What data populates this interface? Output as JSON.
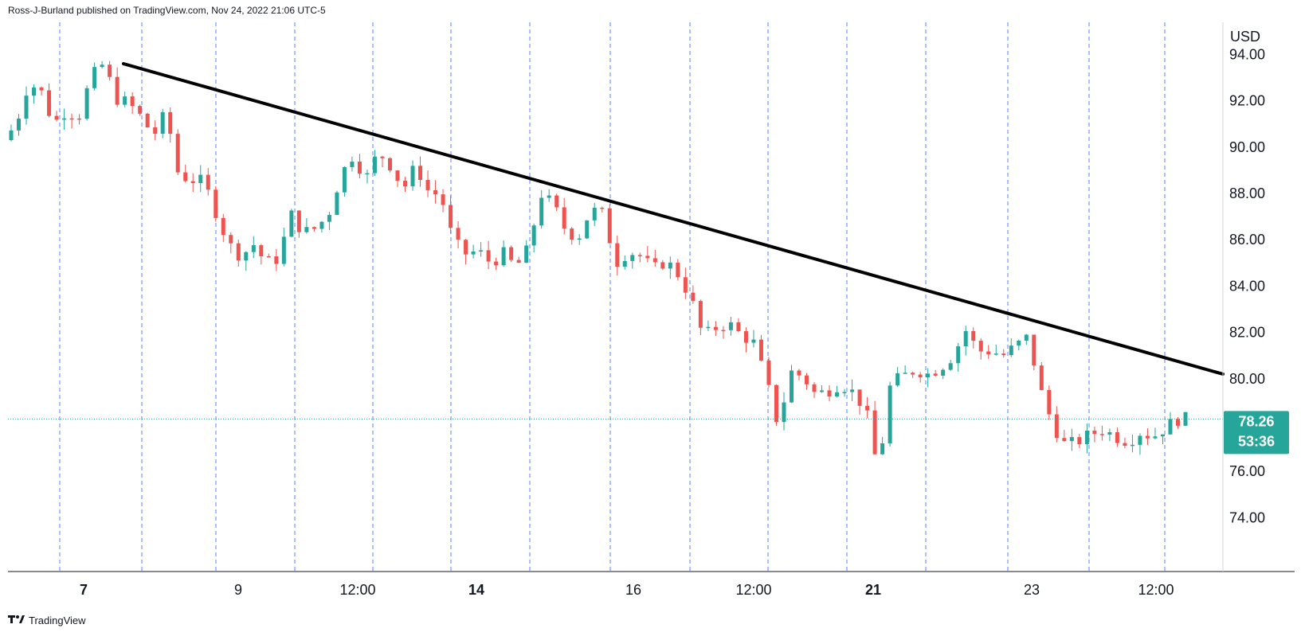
{
  "attribution": "Ross-J-Burland published on TradingView.com, Nov 24, 2022 21:06 UTC-5",
  "footer": {
    "brand": "TradingView",
    "icon": "tradingview-logo-icon"
  },
  "colors": {
    "up": "#26a69a",
    "down": "#ef5350",
    "trend": "#000000",
    "grid": "#2962ff",
    "axis": "#131722",
    "price_badge": "#26a69a"
  },
  "price_badge": {
    "price": "78.26",
    "countdown": "53:36"
  },
  "chart_data": {
    "type": "line",
    "subtype": "candlestick",
    "currency_label": "USD",
    "ylim": [
      72.2,
      95.5
    ],
    "y_ticks": [
      "94.00",
      "92.00",
      "90.00",
      "88.00",
      "86.00",
      "84.00",
      "82.00",
      "80.00",
      "78.00",
      "76.00",
      "74.00"
    ],
    "y_tick_values": [
      94,
      92,
      90,
      88,
      86,
      84,
      82,
      80,
      78,
      76,
      74
    ],
    "x_ticks": [
      {
        "label": "7",
        "bold": true
      },
      {
        "label": "9",
        "bold": false
      },
      {
        "label": "12:00",
        "bold": false
      },
      {
        "label": "14",
        "bold": true
      },
      {
        "label": "16",
        "bold": false
      },
      {
        "label": "12:00",
        "bold": false
      },
      {
        "label": "21",
        "bold": true
      },
      {
        "label": "23",
        "bold": false
      },
      {
        "label": "12:00",
        "bold": false
      }
    ],
    "last_price": 78.26,
    "trendline": {
      "start": 93.6,
      "end": 80.2
    },
    "price_path": [
      90.3,
      91.0,
      92.8,
      92.4,
      91.0,
      91.6,
      91.3,
      93.0,
      93.6,
      92.1,
      91.9,
      91.3,
      90.5,
      91.5,
      88.8,
      88.6,
      88.5,
      87.2,
      85.8,
      85.3,
      85.8,
      85.0,
      85.2,
      87.1,
      86.3,
      86.5,
      87.1,
      88.8,
      89.7,
      88.6,
      89.8,
      89.2,
      88.2,
      89.2,
      88.1,
      87.9,
      85.9,
      85.4,
      85.5,
      85.0,
      85.4,
      84.8,
      85.6,
      88.0,
      87.5,
      86.4,
      86.1,
      87.3,
      87.1,
      85.0,
      85.5,
      85.3,
      84.7,
      85.1,
      84.5,
      83.5,
      81.8,
      82.2,
      82.4,
      81.9,
      81.6,
      80.0,
      78.0,
      80.3,
      80.1,
      79.3,
      79.5,
      79.8,
      79.4,
      78.7,
      76.0,
      79.8,
      80.1,
      80.4,
      80.2,
      80.5,
      81.0,
      82.1,
      81.2,
      81.2,
      81.0,
      81.4,
      81.8,
      79.5,
      78.0,
      77.1,
      77.3,
      77.6,
      77.8,
      77.5,
      77.3,
      77.7,
      77.5,
      77.9,
      78.26
    ]
  }
}
